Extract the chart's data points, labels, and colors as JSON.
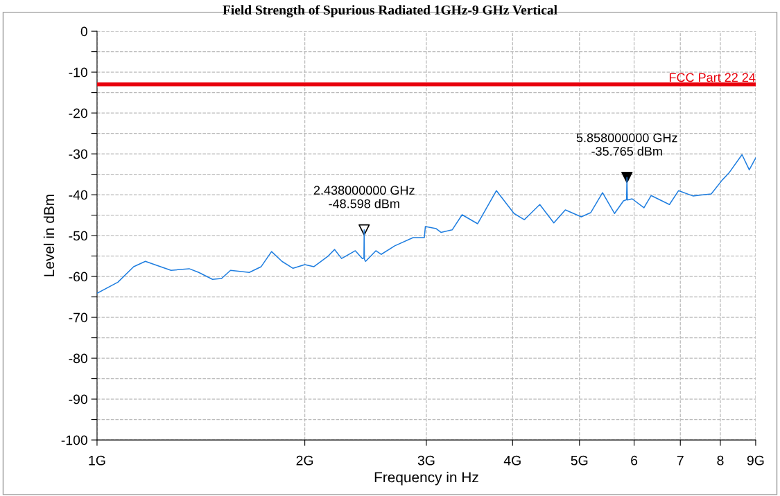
{
  "chart_data": {
    "type": "line",
    "title": "Field Strength of Spurious Radiated 1GHz-9 GHz Vertical",
    "xlabel": "Frequency in Hz",
    "ylabel": "Level in dBm",
    "log": "x",
    "grid": true,
    "legend": false,
    "xlim": [
      1,
      9
    ],
    "xticks": [
      {
        "value": 1,
        "label": "1G"
      },
      {
        "value": 2,
        "label": "2G"
      },
      {
        "value": 3,
        "label": "3G"
      },
      {
        "value": 4,
        "label": "4G"
      },
      {
        "value": 5,
        "label": "5G"
      },
      6,
      7,
      8,
      {
        "value": 9,
        "label": "9G"
      }
    ],
    "ylim": [
      -100,
      0
    ],
    "yticks": [
      -100,
      {
        "value": -95,
        "label": null
      },
      -90,
      {
        "value": -85,
        "label": null
      },
      -80,
      {
        "value": -75,
        "label": null
      },
      -70,
      {
        "value": -65,
        "label": null
      },
      -60,
      {
        "value": -55,
        "label": null
      },
      -50,
      {
        "value": -45,
        "label": null
      },
      -40,
      {
        "value": -35,
        "label": null
      },
      -30,
      {
        "value": -25,
        "label": null
      },
      -20,
      {
        "value": -15,
        "label": null
      },
      -10,
      {
        "value": -5,
        "label": null
      },
      0
    ],
    "ref_lines": [
      {
        "axis": "y",
        "value": -13,
        "label": "FCC Part 22 24",
        "color": "#e8000b",
        "line_style": "solid"
      }
    ],
    "annotations": [
      {
        "text": "2.438000000 GHz\n-48.598 dBm",
        "x": 2.438,
        "y": -48.598
      },
      {
        "text": "5.858000000 GHz\n-35.765 dBm",
        "x": 5.858,
        "y": -35.765
      }
    ],
    "series": [
      {
        "color": "#1f7ee0",
        "marker": "none",
        "line_style": "solid",
        "x": [
          1.0,
          1.072,
          1.13,
          1.175,
          1.212,
          1.28,
          1.36,
          1.404,
          1.47,
          1.515,
          1.561,
          1.662,
          1.729,
          1.79,
          1.853,
          1.923,
          2.0,
          2.062,
          2.159,
          2.209,
          2.261,
          2.367,
          2.423,
          2.436,
          2.438,
          2.44,
          2.45,
          2.535,
          2.58,
          2.7,
          2.87,
          2.98,
          2.99,
          3.1,
          3.15,
          3.27,
          3.38,
          3.56,
          3.79,
          4.02,
          4.16,
          4.38,
          4.59,
          4.77,
          5.03,
          5.19,
          5.4,
          5.62,
          5.79,
          5.85,
          5.858,
          5.866,
          5.96,
          6.2,
          6.35,
          6.75,
          6.96,
          7.3,
          7.76,
          8.05,
          8.23,
          8.6,
          8.81,
          9.0
        ],
        "values": [
          -64.1,
          -61.4,
          -57.6,
          -56.3,
          -57.1,
          -58.5,
          -58.1,
          -59.0,
          -60.7,
          -60.5,
          -58.5,
          -59.0,
          -57.6,
          -53.9,
          -56.3,
          -58.0,
          -57.1,
          -57.6,
          -55.1,
          -53.4,
          -55.6,
          -53.7,
          -55.6,
          -55.5,
          -48.598,
          -55.8,
          -56.3,
          -53.7,
          -54.6,
          -52.5,
          -50.5,
          -50.5,
          -47.8,
          -48.3,
          -49.2,
          -48.6,
          -44.9,
          -47.1,
          -39.0,
          -44.6,
          -46.1,
          -42.4,
          -46.9,
          -43.7,
          -45.4,
          -44.4,
          -39.5,
          -44.6,
          -41.5,
          -41.2,
          -35.765,
          -41.3,
          -41.0,
          -43.2,
          -40.2,
          -42.4,
          -39.0,
          -40.3,
          -39.8,
          -36.4,
          -34.7,
          -30.2,
          -33.9,
          -31.0
        ]
      },
      {
        "type": "scatter",
        "color": "#000000",
        "colors": [
          "#ffffff",
          "#000000"
        ],
        "marker": "triangle",
        "x": [
          2.438,
          5.858
        ],
        "values": [
          -48.598,
          -35.765
        ]
      }
    ]
  }
}
